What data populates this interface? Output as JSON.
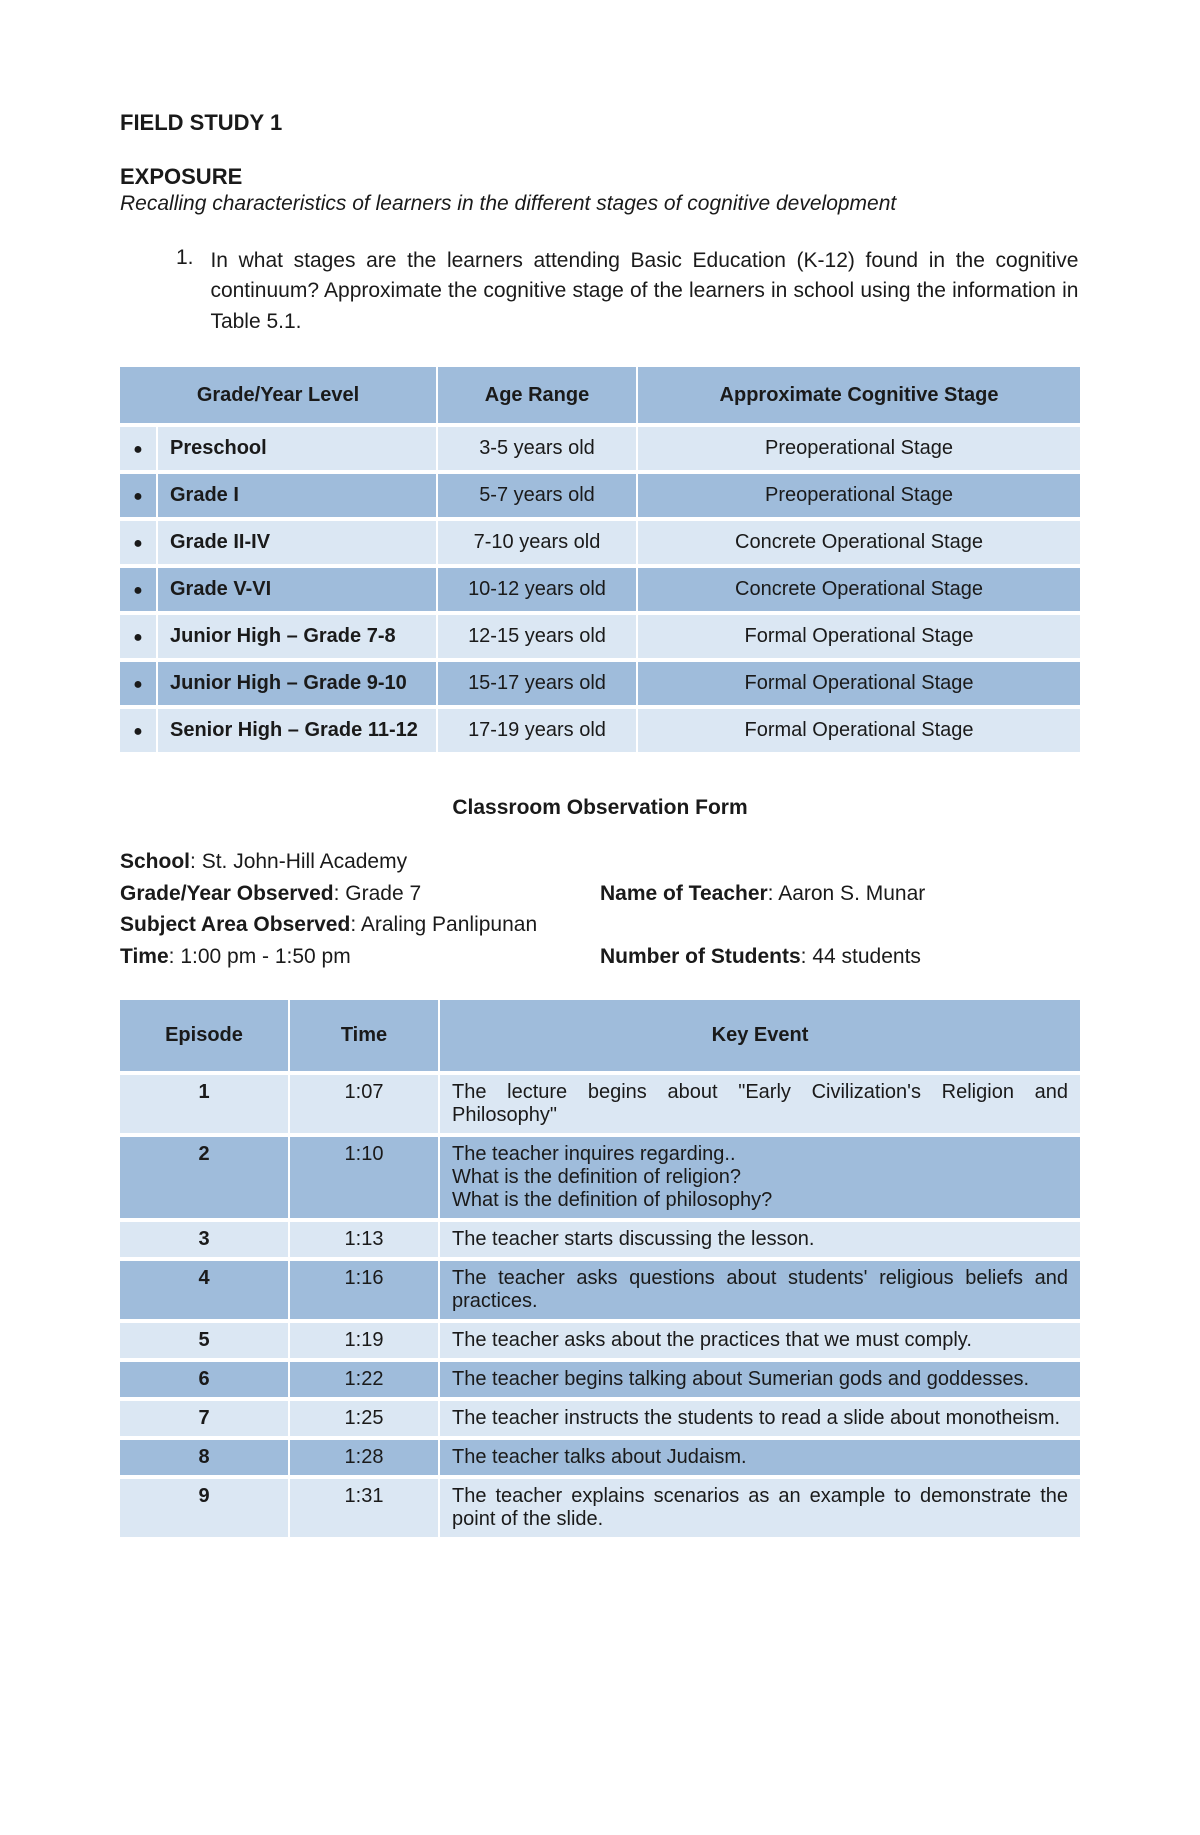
{
  "header": {
    "main_title": "FIELD STUDY 1",
    "sub_title": "EXPOSURE",
    "subtitle_italic": "Recalling characteristics of learners in the different stages of cognitive development",
    "q_number": "1.",
    "q_text": "In what stages are the learners attending Basic Education (K-12) found in the cognitive continuum? Approximate the cognitive stage of the learners in school using the information in Table 5.1."
  },
  "table1": {
    "headers": {
      "col1": "Grade/Year Level",
      "col2": "Age Range",
      "col3": "Approximate Cognitive Stage"
    },
    "rows": [
      {
        "grade": "Preschool",
        "age": "3-5 years old",
        "stage": "Preoperational Stage",
        "shade": "light"
      },
      {
        "grade": "Grade I",
        "age": "5-7 years old",
        "stage": "Preoperational Stage",
        "shade": "dark"
      },
      {
        "grade": "Grade II-IV",
        "age": "7-10 years old",
        "stage": "Concrete Operational Stage",
        "shade": "light"
      },
      {
        "grade": "Grade V-VI",
        "age": "10-12 years old",
        "stage": "Concrete Operational Stage",
        "shade": "dark"
      },
      {
        "grade": "Junior High – Grade 7-8",
        "age": "12-15 years old",
        "stage": "Formal Operational Stage",
        "shade": "light"
      },
      {
        "grade": "Junior High – Grade 9-10",
        "age": "15-17 years old",
        "stage": "Formal Operational Stage",
        "shade": "dark"
      },
      {
        "grade": "Senior High – Grade 11-12",
        "age": "17-19 years old",
        "stage": "Formal Operational Stage",
        "shade": "light"
      }
    ]
  },
  "form": {
    "title": "Classroom Observation Form",
    "labels": {
      "school": "School",
      "grade": "Grade/Year Observed",
      "teacher": "Name of Teacher",
      "subject": "Subject Area Observed",
      "time": "Time",
      "students": "Number of Students"
    },
    "values": {
      "school": "St. John-Hill Academy",
      "grade": "Grade 7",
      "teacher": "Aaron S. Munar",
      "subject": "Araling Panlipunan",
      "time": "1:00 pm - 1:50 pm",
      "students": "44 students"
    }
  },
  "table2": {
    "headers": {
      "col1": "Episode",
      "col2": "Time",
      "col3": "Key Event"
    },
    "rows": [
      {
        "ep": "1",
        "time": "1:07",
        "event": "The lecture begins about \"Early Civilization's Religion and Philosophy\"",
        "shade": "light"
      },
      {
        "ep": "2",
        "time": "1:10",
        "event": "The teacher inquires regarding..\nWhat is the definition of religion?\nWhat is the definition of philosophy?",
        "shade": "dark"
      },
      {
        "ep": "3",
        "time": "1:13",
        "event": "The teacher starts discussing the lesson.",
        "shade": "light"
      },
      {
        "ep": "4",
        "time": "1:16",
        "event": "The teacher asks questions about students' religious beliefs and practices.",
        "shade": "dark"
      },
      {
        "ep": "5",
        "time": "1:19",
        "event": "The teacher asks about the practices that we must comply.",
        "shade": "light"
      },
      {
        "ep": "6",
        "time": "1:22",
        "event": "The teacher begins talking about Sumerian gods and goddesses.",
        "shade": "dark"
      },
      {
        "ep": "7",
        "time": "1:25",
        "event": "The teacher instructs the students to read a slide about monotheism.",
        "shade": "light"
      },
      {
        "ep": "8",
        "time": "1:28",
        "event": "The teacher talks about Judaism.",
        "shade": "dark"
      },
      {
        "ep": "9",
        "time": "1:31",
        "event": "The teacher explains scenarios as an example to demonstrate the point of the slide.",
        "shade": "light"
      }
    ]
  },
  "colors": {
    "header_bg": "#9fbcdb",
    "light_bg": "#dbe7f3",
    "dark_bg": "#9fbcdb"
  }
}
